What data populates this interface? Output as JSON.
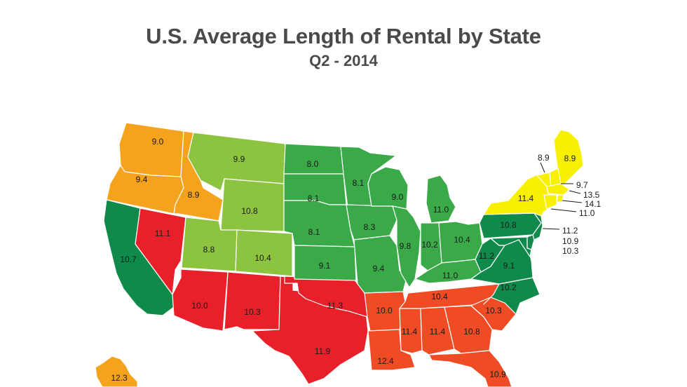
{
  "title": "U.S. Average Length of Rental by State",
  "subtitle": "Q2 - 2014",
  "colors": {
    "orange": "#f5a21d",
    "dark_green": "#0f8a4a",
    "red": "#e8202a",
    "lime": "#8cc43f",
    "green": "#3aaa49",
    "red_orange": "#ef4b24",
    "yellow": "#f8f001"
  },
  "states": [
    {
      "name": "WA",
      "value": "9.0",
      "color": "orange"
    },
    {
      "name": "OR",
      "value": "9.4",
      "color": "orange"
    },
    {
      "name": "ID",
      "value": "8.9",
      "color": "orange"
    },
    {
      "name": "AK",
      "value": "12.3",
      "color": "orange"
    },
    {
      "name": "CA",
      "value": "10.7",
      "color": "dark_green"
    },
    {
      "name": "NV",
      "value": "11.1",
      "color": "red"
    },
    {
      "name": "MT",
      "value": "9.9",
      "color": "lime"
    },
    {
      "name": "WY",
      "value": "10.8",
      "color": "lime"
    },
    {
      "name": "UT",
      "value": "8.8",
      "color": "lime"
    },
    {
      "name": "CO",
      "value": "10.4",
      "color": "lime"
    },
    {
      "name": "AZ",
      "value": "10.0",
      "color": "red"
    },
    {
      "name": "NM",
      "value": "10.3",
      "color": "red"
    },
    {
      "name": "TX",
      "value": "11.9",
      "color": "red"
    },
    {
      "name": "OK",
      "value": "11.3",
      "color": "red"
    },
    {
      "name": "ND",
      "value": "8.0",
      "color": "green"
    },
    {
      "name": "SD",
      "value": "8.1",
      "color": "green"
    },
    {
      "name": "NE",
      "value": "8.1",
      "color": "green"
    },
    {
      "name": "KS",
      "value": "9.1",
      "color": "green"
    },
    {
      "name": "MN",
      "value": "8.1",
      "color": "green"
    },
    {
      "name": "IA",
      "value": "8.3",
      "color": "green"
    },
    {
      "name": "MO",
      "value": "9.4",
      "color": "green"
    },
    {
      "name": "WI",
      "value": "9.0",
      "color": "green"
    },
    {
      "name": "MI",
      "value": "11.0",
      "color": "green"
    },
    {
      "name": "IL",
      "value": "9.8",
      "color": "green"
    },
    {
      "name": "IN",
      "value": "10.2",
      "color": "green"
    },
    {
      "name": "OH",
      "value": "10.4",
      "color": "green"
    },
    {
      "name": "KY",
      "value": "11.0",
      "color": "green"
    },
    {
      "name": "AR",
      "value": "10.0",
      "color": "red_orange"
    },
    {
      "name": "LA",
      "value": "12.4",
      "color": "red_orange"
    },
    {
      "name": "MS",
      "value": "11.4",
      "color": "red_orange"
    },
    {
      "name": "AL",
      "value": "11.4",
      "color": "red_orange"
    },
    {
      "name": "TN",
      "value": "10.4",
      "color": "red_orange"
    },
    {
      "name": "GA",
      "value": "10.8",
      "color": "red_orange"
    },
    {
      "name": "SC",
      "value": "10.3",
      "color": "red_orange"
    },
    {
      "name": "FL",
      "value": "10.9",
      "color": "red_orange"
    },
    {
      "name": "NC",
      "value": "10.2",
      "color": "dark_green"
    },
    {
      "name": "VA",
      "value": "9.1",
      "color": "dark_green"
    },
    {
      "name": "WV",
      "value": "11.2",
      "color": "dark_green"
    },
    {
      "name": "PA",
      "value": "10.8",
      "color": "dark_green"
    },
    {
      "name": "NJ",
      "value": "11.2",
      "color": "dark_green"
    },
    {
      "name": "DE",
      "value": "10.9",
      "color": "dark_green"
    },
    {
      "name": "MD",
      "value": "10.3",
      "color": "dark_green"
    },
    {
      "name": "NY",
      "value": "11.4",
      "color": "yellow"
    },
    {
      "name": "VT",
      "value": "8.9",
      "color": "yellow"
    },
    {
      "name": "ME",
      "value": "8.9",
      "color": "yellow"
    },
    {
      "name": "NH",
      "value": "9.7",
      "color": "yellow"
    },
    {
      "name": "MA",
      "value": "13.5",
      "color": "yellow"
    },
    {
      "name": "RI",
      "value": "14.1",
      "color": "yellow"
    },
    {
      "name": "CT",
      "value": "11.0",
      "color": "yellow"
    }
  ]
}
